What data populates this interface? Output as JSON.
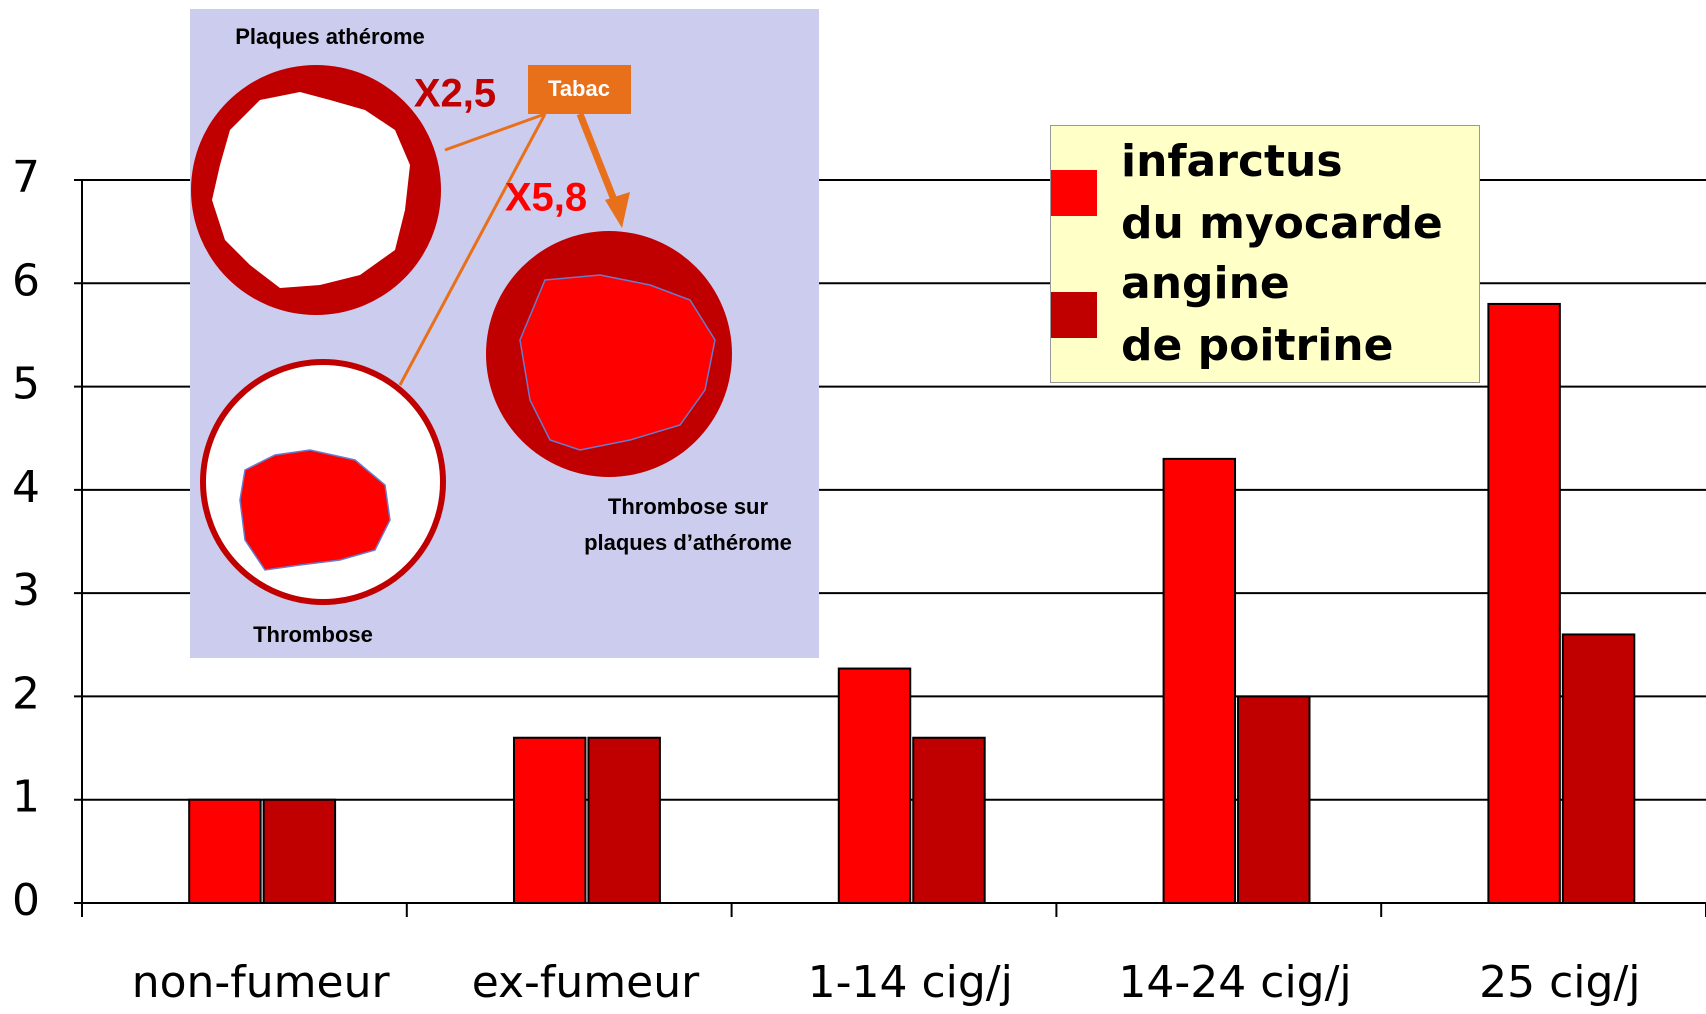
{
  "chart_data": {
    "type": "bar",
    "categories": [
      "non-fumeur",
      "ex-fumeur",
      "1-14 cig/j",
      "14-24 cig/j",
      "25 cig/j"
    ],
    "series": [
      {
        "name": "infarctus\ndu myocarde",
        "color": "#ff0000",
        "values": [
          1,
          1.6,
          2.27,
          4.3,
          5.8
        ]
      },
      {
        "name": "angine\nde poitrine",
        "color": "#c00000",
        "values": [
          1,
          1.6,
          1.6,
          2,
          2.6
        ]
      }
    ],
    "ylim": [
      0,
      7
    ],
    "yticks": [
      0,
      1,
      2,
      3,
      4,
      5,
      6,
      7
    ],
    "grid": true
  },
  "inset": {
    "title": "Plaques athérome",
    "factor_box": "Tabac",
    "factor_1": "X2,5",
    "factor_2": "X5,8",
    "label_thrombosis_plaque": "Thrombose sur\nplaques d’athérome",
    "label_thrombosis": "Thrombose"
  }
}
